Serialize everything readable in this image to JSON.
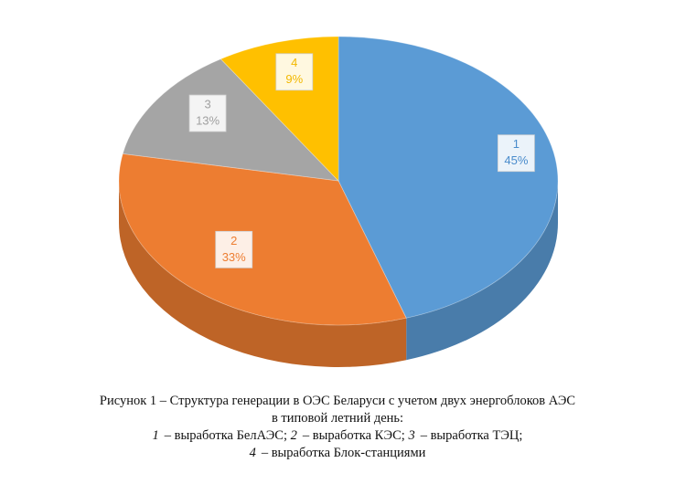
{
  "chart_data": {
    "type": "pie3d",
    "categories": [
      "1",
      "2",
      "3",
      "4"
    ],
    "values": [
      45,
      33,
      13,
      9
    ],
    "value_labels": [
      "45%",
      "33%",
      "13%",
      "9%"
    ],
    "colors": [
      "#5b9bd5",
      "#ed7d31",
      "#a5a5a5",
      "#ffc000"
    ],
    "label_colors": [
      "#4a8ccc",
      "#ed7d31",
      "#a0a0a0",
      "#f2b800"
    ]
  },
  "caption": {
    "title_lines": [
      "Рисунок 1 – Структура генерации в ОЭС Беларуси с учетом двух энергоблоков АЭС",
      "в типовой летний день:"
    ],
    "legend_lines": [
      [
        {
          "number": "1",
          "text": "– выработка БелАЭС;"
        },
        {
          "number": "2",
          "text": "– выработка КЭС;"
        },
        {
          "number": "3",
          "text": "– выработка ТЭЦ;"
        }
      ],
      [
        {
          "number": "4",
          "text": "– выработка Блок-станциями"
        }
      ]
    ]
  }
}
